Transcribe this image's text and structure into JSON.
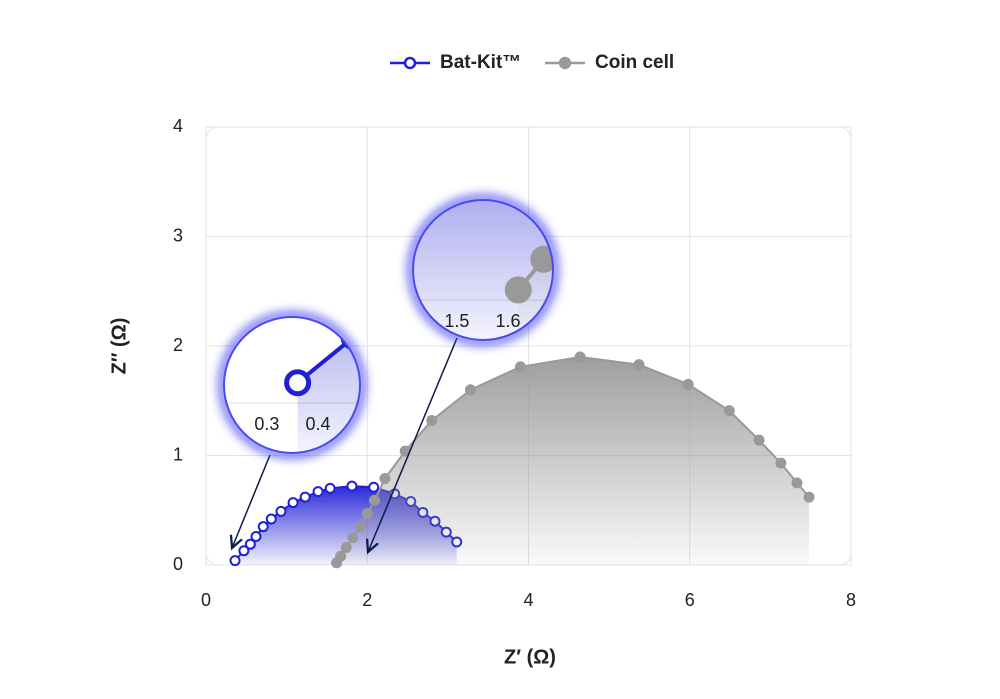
{
  "chart_data": {
    "type": "line",
    "xlabel": "Z′ (Ω)",
    "ylabel": "Z″ (Ω)",
    "xlim": [
      0,
      8
    ],
    "ylim": [
      0,
      4
    ],
    "xticks": [
      0,
      2,
      4,
      6,
      8
    ],
    "yticks": [
      0,
      1,
      2,
      3,
      4
    ],
    "grid": true,
    "series": [
      {
        "name": "Bat-Kit™",
        "color": "#1f1fd6",
        "marker": "open",
        "x": [
          0.36,
          0.47,
          0.55,
          0.62,
          0.71,
          0.81,
          0.93,
          1.08,
          1.23,
          1.39,
          1.54,
          1.81,
          2.08,
          2.34,
          2.54,
          2.69,
          2.84,
          2.98,
          3.11
        ],
        "values": [
          0.04,
          0.13,
          0.19,
          0.26,
          0.35,
          0.42,
          0.49,
          0.57,
          0.62,
          0.67,
          0.7,
          0.72,
          0.71,
          0.65,
          0.58,
          0.48,
          0.4,
          0.3,
          0.21
        ]
      },
      {
        "name": "Coin cell",
        "color": "#999999",
        "marker": "filled",
        "x": [
          1.62,
          1.67,
          1.74,
          1.82,
          1.91,
          2.0,
          2.09,
          2.22,
          2.47,
          2.8,
          3.28,
          3.9,
          4.64,
          5.37,
          5.98,
          6.49,
          6.86,
          7.13,
          7.33,
          7.48
        ],
        "values": [
          0.02,
          0.08,
          0.16,
          0.25,
          0.35,
          0.47,
          0.59,
          0.79,
          1.04,
          1.32,
          1.6,
          1.81,
          1.9,
          1.83,
          1.65,
          1.41,
          1.14,
          0.93,
          0.75,
          0.62
        ]
      }
    ],
    "insets": [
      {
        "xlim": [
          0.216,
          0.482
        ],
        "ylim": [
          -0.098,
          0.169
        ],
        "xticks": [
          0.3,
          0.4
        ]
      },
      {
        "xlim": [
          1.414,
          1.688
        ],
        "ylim": [
          -0.078,
          0.196
        ],
        "xticks": [
          1.5,
          1.6
        ]
      }
    ]
  }
}
